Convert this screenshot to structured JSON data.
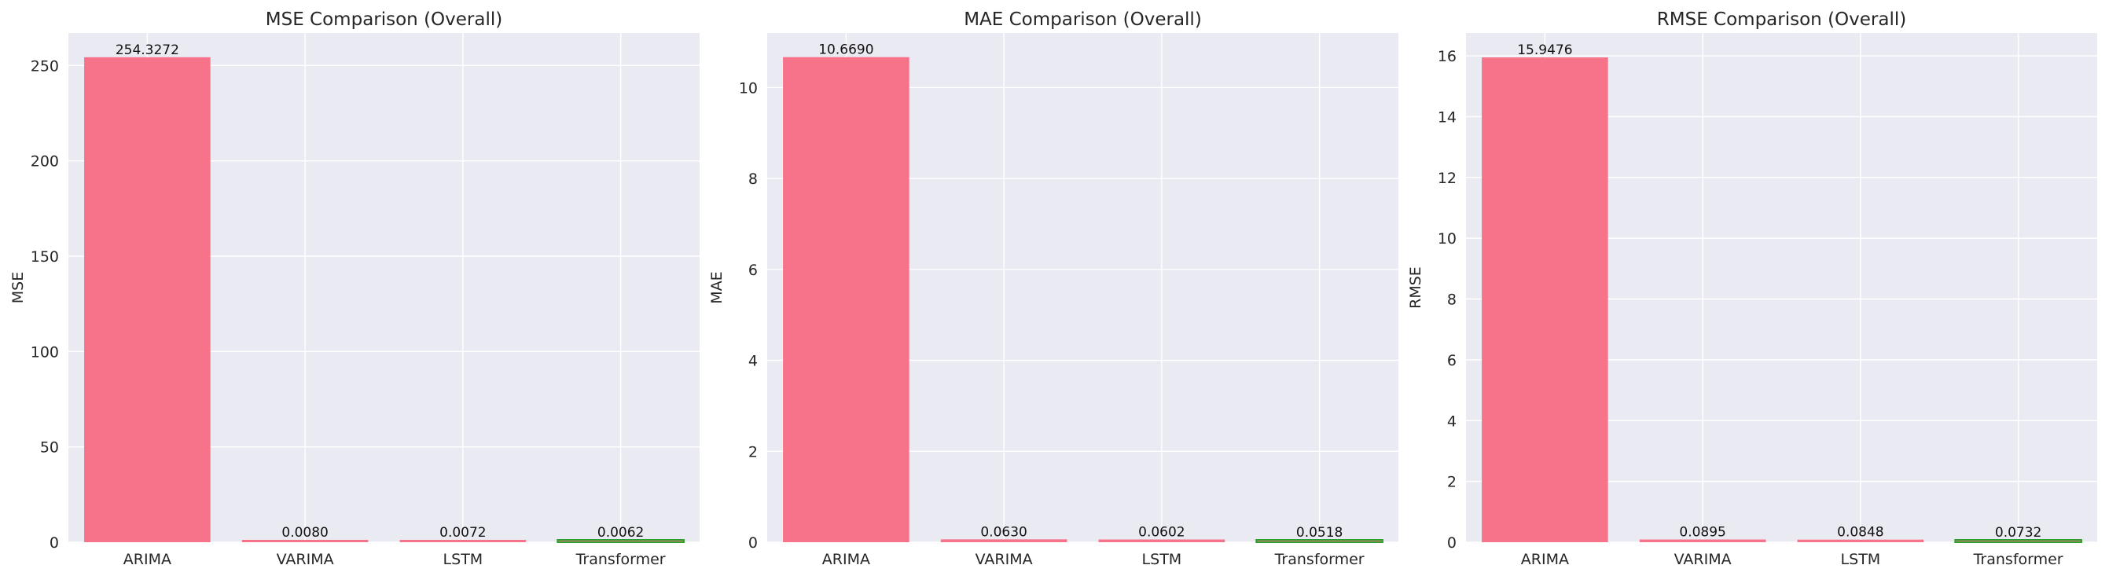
{
  "colors": {
    "background": "#eaeaf2",
    "grid": "#ffffff",
    "primary_bar": "#f7738a",
    "best_bar_edge": "#2ca02c"
  },
  "chart_data": [
    {
      "type": "bar",
      "title": "MSE Comparison (Overall)",
      "ylabel": "MSE",
      "categories": [
        "ARIMA",
        "VARIMA",
        "LSTM",
        "Transformer"
      ],
      "values": [
        254.3272,
        0.008,
        0.0072,
        0.0062
      ],
      "value_labels": [
        "254.3272",
        "0.0080",
        "0.0072",
        "0.0062"
      ],
      "ylim": [
        0,
        267.04
      ],
      "yticks": [
        0,
        50,
        100,
        150,
        200,
        250
      ],
      "highlight_index": 3,
      "grid": true
    },
    {
      "type": "bar",
      "title": "MAE Comparison (Overall)",
      "ylabel": "MAE",
      "categories": [
        "ARIMA",
        "VARIMA",
        "LSTM",
        "Transformer"
      ],
      "values": [
        10.669,
        0.063,
        0.0602,
        0.0518
      ],
      "value_labels": [
        "10.6690",
        "0.0630",
        "0.0602",
        "0.0518"
      ],
      "ylim": [
        0,
        11.2
      ],
      "yticks": [
        0,
        2,
        4,
        6,
        8,
        10
      ],
      "highlight_index": 3,
      "grid": true
    },
    {
      "type": "bar",
      "title": "RMSE Comparison (Overall)",
      "ylabel": "RMSE",
      "categories": [
        "ARIMA",
        "VARIMA",
        "LSTM",
        "Transformer"
      ],
      "values": [
        15.9476,
        0.0895,
        0.0848,
        0.0732
      ],
      "value_labels": [
        "15.9476",
        "0.0895",
        "0.0848",
        "0.0732"
      ],
      "ylim": [
        0,
        16.75
      ],
      "yticks": [
        0,
        2,
        4,
        6,
        8,
        10,
        12,
        14,
        16
      ],
      "highlight_index": 3,
      "grid": true
    }
  ]
}
